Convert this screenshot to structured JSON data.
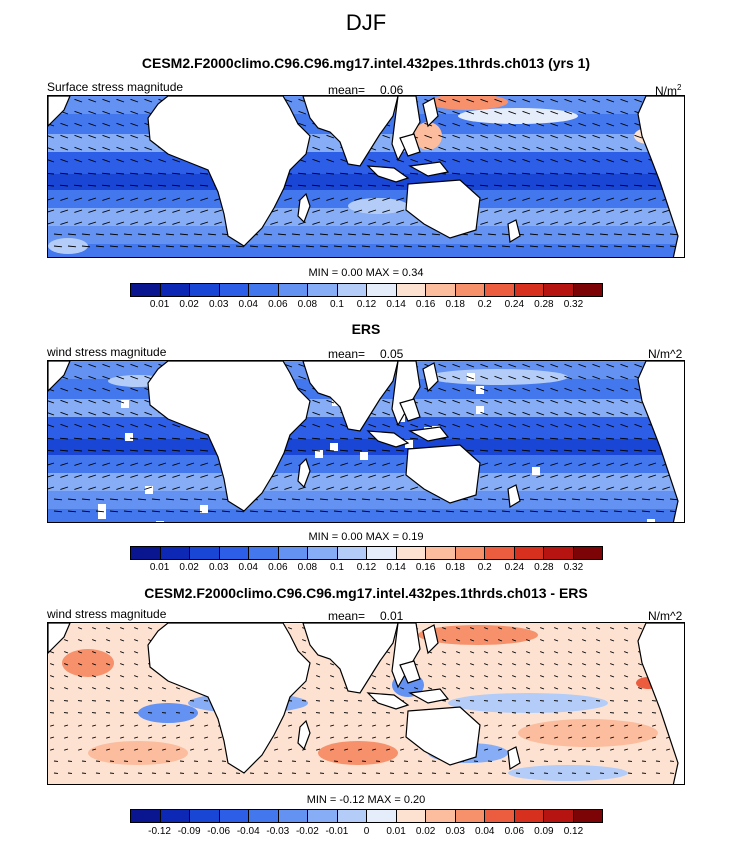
{
  "figure": {
    "title": "DJF"
  },
  "panels": [
    {
      "title": "CESM2.F2000climo.C96.C96.mg17.intel.432pes.1thrds.ch013 (yrs 1)",
      "left_label": "Surface stress magnitude",
      "mean_label": "mean=",
      "mean_value": "0.06",
      "units": "N/m",
      "units_sup": "2",
      "minmax_text": "MIN =  0.00 MAX =  0.34",
      "colorbar_ticks": [
        "0.01",
        "0.02",
        "0.03",
        "0.04",
        "0.06",
        "0.08",
        "0.1",
        "0.12",
        "0.14",
        "0.16",
        "0.18",
        "0.2",
        "0.24",
        "0.28",
        "0.32"
      ],
      "colors": [
        "#0a1690",
        "#0d28b4",
        "#1a46d6",
        "#2d5ee8",
        "#4377ee",
        "#6392f2",
        "#86adf5",
        "#b3cdf8",
        "#e5edfb",
        "#fde2d2",
        "#fbbd9e",
        "#f6916c",
        "#ec5c3e",
        "#d8301f",
        "#b51410",
        "#7c0306"
      ],
      "map_style": "positive"
    },
    {
      "title": "ERS",
      "left_label": "wind stress magnitude",
      "mean_label": "mean=",
      "mean_value": "0.05",
      "units": "N/m^2",
      "units_sup": "",
      "minmax_text": "MIN =  0.00 MAX =  0.19",
      "colorbar_ticks": [
        "0.01",
        "0.02",
        "0.03",
        "0.04",
        "0.06",
        "0.08",
        "0.1",
        "0.12",
        "0.14",
        "0.16",
        "0.18",
        "0.2",
        "0.24",
        "0.28",
        "0.32"
      ],
      "colors": [
        "#0a1690",
        "#0d28b4",
        "#1a46d6",
        "#2d5ee8",
        "#4377ee",
        "#6392f2",
        "#86adf5",
        "#b3cdf8",
        "#e5edfb",
        "#fde2d2",
        "#fbbd9e",
        "#f6916c",
        "#ec5c3e",
        "#d8301f",
        "#b51410",
        "#7c0306"
      ],
      "map_style": "positive"
    },
    {
      "title": "CESM2.F2000climo.C96.C96.mg17.intel.432pes.1thrds.ch013 - ERS",
      "left_label": "wind stress magnitude",
      "mean_label": "mean=",
      "mean_value": "0.01",
      "units": "N/m^2",
      "units_sup": "",
      "minmax_text": "MIN = -0.12 MAX =  0.20",
      "colorbar_ticks": [
        "-0.12",
        "-0.09",
        "-0.06",
        "-0.04",
        "-0.03",
        "-0.02",
        "-0.01",
        "0",
        "0.01",
        "0.02",
        "0.03",
        "0.04",
        "0.06",
        "0.09",
        "0.12"
      ],
      "colors": [
        "#0a1690",
        "#0d28b4",
        "#1a46d6",
        "#2d5ee8",
        "#4377ee",
        "#6392f2",
        "#86adf5",
        "#b3cdf8",
        "#e5edfb",
        "#fde2d2",
        "#fbbd9e",
        "#f6916c",
        "#ec5c3e",
        "#d8301f",
        "#b51410",
        "#7c0306"
      ],
      "map_style": "diverging"
    }
  ],
  "chart_data": [
    {
      "type": "heatmap",
      "title": "CESM2.F2000climo.C96.C96.mg17.intel.432pes.1thrds.ch013 (yrs 1)",
      "variable": "Surface stress magnitude",
      "units": "N/m^2",
      "mean": 0.06,
      "min": 0.0,
      "max": 0.34,
      "contour_levels": [
        0.01,
        0.02,
        0.03,
        0.04,
        0.06,
        0.08,
        0.1,
        0.12,
        0.14,
        0.16,
        0.18,
        0.2,
        0.24,
        0.28,
        0.32
      ],
      "overlay": "wind stress vectors"
    },
    {
      "type": "heatmap",
      "title": "ERS",
      "variable": "wind stress magnitude",
      "units": "N/m^2",
      "mean": 0.05,
      "min": 0.0,
      "max": 0.19,
      "contour_levels": [
        0.01,
        0.02,
        0.03,
        0.04,
        0.06,
        0.08,
        0.1,
        0.12,
        0.14,
        0.16,
        0.18,
        0.2,
        0.24,
        0.28,
        0.32
      ],
      "overlay": "wind stress vectors"
    },
    {
      "type": "heatmap",
      "title": "CESM2.F2000climo.C96.C96.mg17.intel.432pes.1thrds.ch013 - ERS",
      "variable": "wind stress magnitude",
      "units": "N/m^2",
      "mean": 0.01,
      "min": -0.12,
      "max": 0.2,
      "contour_levels": [
        -0.12,
        -0.09,
        -0.06,
        -0.04,
        -0.03,
        -0.02,
        -0.01,
        0,
        0.01,
        0.02,
        0.03,
        0.04,
        0.06,
        0.09,
        0.12
      ],
      "overlay": "wind stress difference vectors"
    }
  ]
}
